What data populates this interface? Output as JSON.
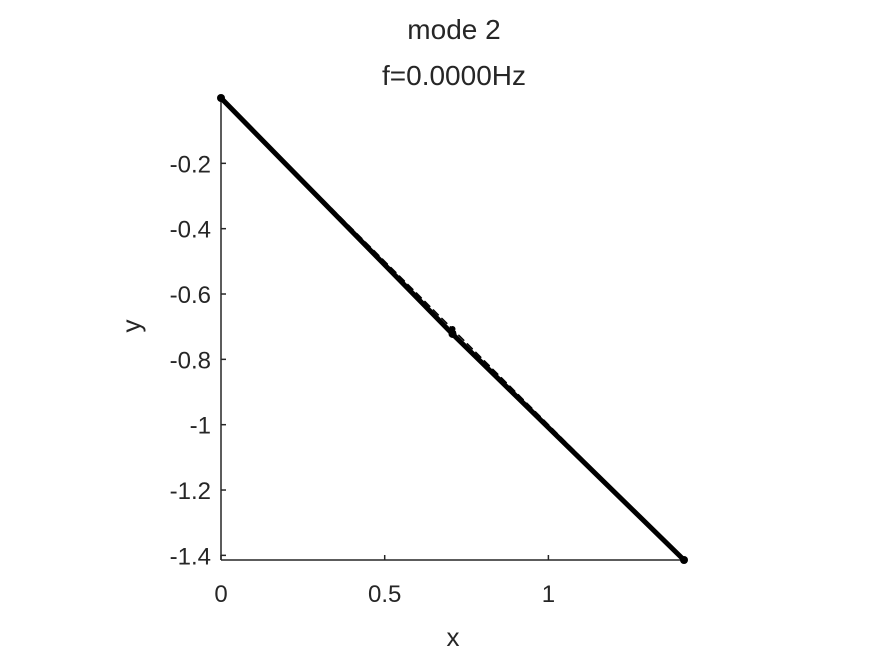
{
  "chart_data": {
    "type": "line",
    "title": [
      "mode 2",
      "f=0.0000Hz"
    ],
    "xlabel": "x",
    "ylabel": "y",
    "xlim": [
      0,
      1.4142
    ],
    "ylim": [
      -1.4142,
      0
    ],
    "xticks": [
      0,
      0.5,
      1
    ],
    "xtick_labels": [
      "0",
      "0.5",
      "1"
    ],
    "yticks": [
      -0.2,
      -0.4,
      -0.6,
      -0.8,
      -1,
      -1.2,
      -1.4
    ],
    "ytick_labels": [
      "-0.2",
      "-0.4",
      "-0.6",
      "-0.8",
      "-1",
      "-1.2",
      "-1.4"
    ],
    "grid": false,
    "series": [
      {
        "style": "dashed",
        "color": "#000000",
        "x": [
          0,
          0.7071,
          1.4142
        ],
        "y": [
          0,
          -0.7071,
          -1.4142
        ]
      },
      {
        "style": "solid-thick",
        "color": "#000000",
        "x": [
          0,
          0.7071,
          1.4142
        ],
        "y": [
          0,
          -0.7223,
          -1.4142
        ]
      }
    ]
  }
}
